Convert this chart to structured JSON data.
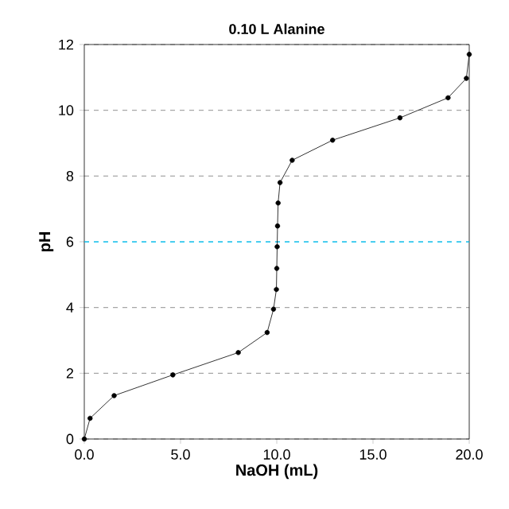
{
  "chart_data": {
    "type": "line",
    "title": "0.10 L Alanine",
    "xlabel": "NaOH (mL)",
    "ylabel": "pH",
    "x": [
      0,
      0.3,
      1.55,
      4.6,
      8.0,
      9.5,
      9.83,
      9.98,
      10.0,
      10.02,
      10.04,
      10.07,
      10.17,
      10.8,
      12.9,
      16.4,
      18.9,
      19.85,
      20.0
    ],
    "series": [
      {
        "color": "#000000",
        "values": [
          0,
          0.63,
          1.32,
          1.95,
          2.63,
          3.24,
          3.95,
          4.55,
          5.19,
          5.85,
          6.48,
          7.18,
          7.8,
          8.48,
          9.09,
          9.77,
          10.38,
          10.97,
          11.7
        ]
      }
    ],
    "xlim": [
      0,
      20
    ],
    "ylim": [
      0,
      12
    ],
    "xticks": [
      {
        "value": 0,
        "label": "0.0"
      },
      {
        "value": 5,
        "label": "5.0"
      },
      {
        "value": 10,
        "label": "10.0"
      },
      {
        "value": 15,
        "label": "15.0"
      },
      {
        "value": 20,
        "label": "20.0"
      }
    ],
    "yticks": [
      0,
      2,
      4,
      6,
      8,
      10,
      12
    ],
    "grid": "y",
    "marker": "circle",
    "line_style": "solid",
    "ref_lines": [
      {
        "axis": "y",
        "value": 6,
        "color": "#00ccff",
        "line_style": "dashed"
      }
    ]
  }
}
